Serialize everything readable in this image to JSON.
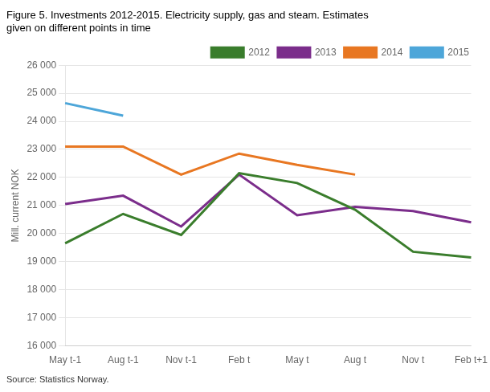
{
  "chart_data": {
    "type": "line",
    "title": "Figure 5. Investments 2012-2015. Electricity supply, gas and steam. Estimates\ngiven on different points in time",
    "ylabel": "Mill. current NOK",
    "source": "Source: Statistics Norway.",
    "categories": [
      "May t-1",
      "Aug t-1",
      "Nov t-1",
      "Feb t",
      "May t",
      "Aug t",
      "Nov t",
      "Feb t+1"
    ],
    "series": [
      {
        "name": "2012",
        "color": "#3a7d2c",
        "values": [
          19650,
          20700,
          19950,
          22150,
          21800,
          20850,
          19350,
          19150
        ]
      },
      {
        "name": "2013",
        "color": "#7b2d8b",
        "values": [
          21050,
          21350,
          20250,
          22100,
          20650,
          20950,
          20800,
          20400
        ]
      },
      {
        "name": "2014",
        "color": "#e87722",
        "values": [
          23100,
          23100,
          22100,
          22850,
          22450,
          22100,
          null,
          null
        ]
      },
      {
        "name": "2015",
        "color": "#4da6d9",
        "values": [
          24650,
          24200,
          null,
          null,
          null,
          null,
          null,
          null
        ]
      }
    ],
    "ylim": [
      16000,
      26000
    ],
    "yticks": [
      {
        "value": 16000,
        "label": "16 000"
      },
      {
        "value": 17000,
        "label": "17 000"
      },
      {
        "value": 18000,
        "label": "18 000"
      },
      {
        "value": 19000,
        "label": "19 000"
      },
      {
        "value": 20000,
        "label": "20 000"
      },
      {
        "value": 21000,
        "label": "21 000"
      },
      {
        "value": 22000,
        "label": "22 000"
      },
      {
        "value": 23000,
        "label": "23 000"
      },
      {
        "value": 24000,
        "label": "24 000"
      },
      {
        "value": 25000,
        "label": "25 000"
      },
      {
        "value": 26000,
        "label": "26 000"
      }
    ],
    "grid": true,
    "legend": "upper right",
    "marker": "none"
  }
}
